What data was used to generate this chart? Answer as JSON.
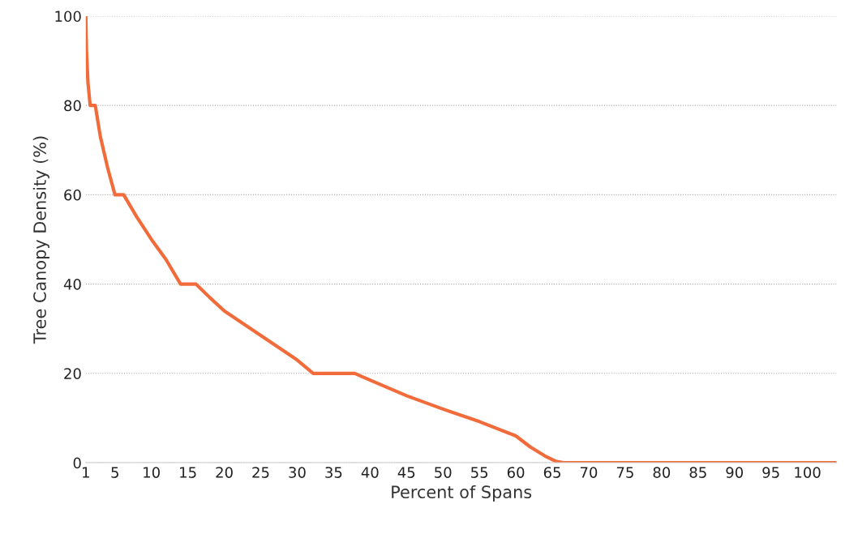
{
  "chart_data": {
    "type": "line",
    "xlabel": "Percent of Spans",
    "ylabel": "Tree Canopy Density (%)",
    "x": [
      1,
      1.1,
      1.3,
      1.6,
      2.3,
      3,
      4,
      5,
      6.2,
      8,
      10,
      12,
      14,
      16.1,
      18,
      20,
      25,
      30,
      32.2,
      37.9,
      40,
      45,
      50,
      55,
      60,
      62,
      64,
      65.5,
      66.5,
      104
    ],
    "series": [
      {
        "color": "#f26b3a",
        "values": [
          100,
          92,
          85,
          80,
          80,
          73,
          66,
          60,
          60,
          55,
          50,
          45.5,
          40,
          40,
          37,
          34,
          28.5,
          23,
          20,
          20,
          18.5,
          15,
          12,
          9.2,
          6,
          3.5,
          1.5,
          0.3,
          0,
          0
        ]
      }
    ],
    "xlim": [
      1,
      104
    ],
    "xticks": [
      1,
      5,
      10,
      15,
      20,
      25,
      30,
      35,
      40,
      45,
      50,
      55,
      60,
      65,
      70,
      75,
      80,
      85,
      90,
      95,
      100
    ],
    "ylim": [
      0,
      100
    ],
    "yticks": [
      0,
      20,
      40,
      60,
      80,
      100
    ],
    "grid": "y",
    "line_style": "solid",
    "marker": "none"
  }
}
